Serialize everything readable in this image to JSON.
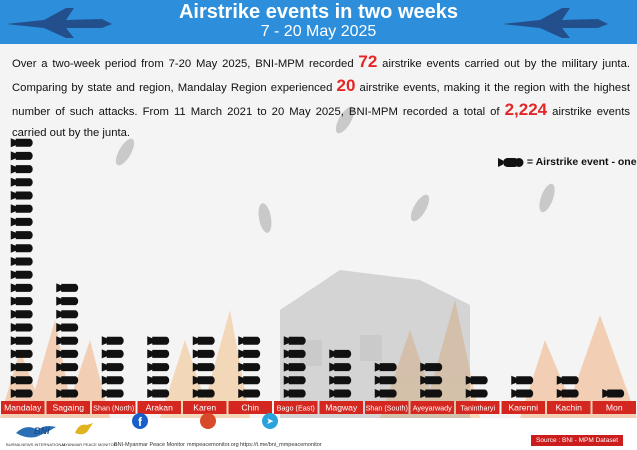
{
  "header": {
    "title": "Airstrike events in two weeks",
    "subtitle": "7 - 20 May 2025"
  },
  "intro": {
    "part1": "Over a two-week period from 7-20 May 2025, BNI-MPM recorded ",
    "total_period": "72",
    "part2": " airstrike events carried out by the military junta. Comparing by state and region, Mandalay Region experienced ",
    "mandalay_count": "20",
    "part3": " airstrike events, making it the region with the highest number of such attacks. From 11 March 2021 to 20 May 2025, BNI-MPM recorded a total of ",
    "total_all": "2,224",
    "part4": " airstrike events carried out by the junta."
  },
  "legend": {
    "label": "= Airstrike event - one"
  },
  "chart_data": {
    "type": "bar",
    "unit_icon": "bomb-icon",
    "categories": [
      "Mandalay",
      "Sagaing",
      "Shan (North)",
      "Arakan",
      "Karen",
      "Chin",
      "Bago (East)",
      "Magway",
      "Shan (South)",
      "Ayeyarwady",
      "Tanintharyi",
      "Karenni",
      "Kachin",
      "Mon"
    ],
    "values": [
      20,
      9,
      5,
      5,
      5,
      5,
      5,
      4,
      3,
      3,
      2,
      2,
      2,
      1
    ],
    "colors": {
      "bar_label_bg": "#d4271f",
      "bomb": "#111111",
      "header": "#2d8fdc",
      "highlight": "#e32626"
    }
  },
  "footer": {
    "org1_logo_text": "BNI",
    "org1_name": "BURMA NEWS INTERNATIONAL",
    "org2_name": "MYANMAR PEACE MONITOR",
    "facebook": "BNI-Myanmar Peace Monitor",
    "website": "mmpeacemonitor.org",
    "telegram": "https://t.me/bni_mmpeacemonitor",
    "source": "Source : BNI - MPM Dataset"
  }
}
